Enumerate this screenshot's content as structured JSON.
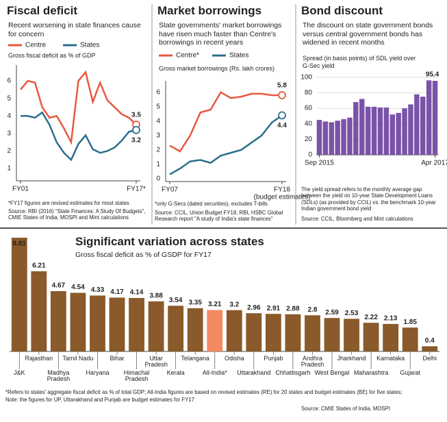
{
  "chart_data": [
    {
      "type": "line",
      "title": "Fiscal deficit",
      "subtitle": "Recent worsening in state finances cause for concern",
      "y_label": "Gross fiscal deficit as % of GDP",
      "categories": [
        "FY01",
        null,
        null,
        null,
        null,
        null,
        null,
        null,
        null,
        null,
        null,
        null,
        null,
        null,
        null,
        null,
        "FY17*"
      ],
      "series": [
        {
          "name": "Centre",
          "color": "#e8583f",
          "values": [
            5.5,
            6.0,
            5.9,
            4.5,
            3.9,
            4.0,
            3.3,
            2.5,
            6.0,
            6.5,
            4.8,
            5.9,
            4.9,
            4.5,
            4.1,
            3.9,
            3.5
          ]
        },
        {
          "name": "States",
          "color": "#2b6e8e",
          "values": [
            4.0,
            4.0,
            3.9,
            4.2,
            3.5,
            2.5,
            1.9,
            1.5,
            2.4,
            2.9,
            2.1,
            1.9,
            2.0,
            2.2,
            2.6,
            3.1,
            3.2
          ]
        }
      ],
      "ylim": [
        0.3,
        6.9
      ],
      "yticks": [
        1,
        2,
        3,
        4,
        5,
        6
      ],
      "grid": false,
      "notes": [
        "*FY17 figures are revised estimates for most states",
        "Source: RBI (2016) \"State Finances: A Study Of Budgets\", CMIE States of India, MOSPI and Mint calculations"
      ]
    },
    {
      "type": "line",
      "title": "Market borrowings",
      "subtitle": "State governments' market borrowings have risen much faster than Centre's borrowings in recent years",
      "y_label": "Gross market borrowings (Rs. lakh crores)",
      "categories": [
        "FY07",
        null,
        null,
        null,
        null,
        null,
        null,
        null,
        null,
        null,
        null,
        "FY18"
      ],
      "x_label_note": "(budget estimates)",
      "series": [
        {
          "name": "Centre*",
          "color": "#e8583f",
          "values": [
            2.3,
            1.9,
            3.0,
            4.6,
            4.8,
            6.0,
            5.6,
            5.7,
            5.9,
            5.9,
            5.8,
            5.8
          ]
        },
        {
          "name": "States",
          "color": "#2b6e8e",
          "values": [
            0.3,
            0.7,
            1.2,
            1.3,
            1.1,
            1.6,
            1.8,
            2.0,
            2.5,
            3.0,
            3.9,
            4.4
          ]
        }
      ],
      "ylim": [
        -0.2,
        6.8
      ],
      "yticks": [
        0,
        1,
        2,
        3,
        4,
        5,
        6
      ],
      "grid": false,
      "notes": [
        "*only G-Secs (dated securities), excludes T-bills",
        "Source: CCIL, Union Budget FY18, RBI, HSBC Global Research report \"A study of India's state finances\""
      ]
    },
    {
      "type": "bar",
      "title": "Bond discount",
      "subtitle": "The discount on state government bonds versus central government bonds has widened in recent months",
      "y_label": "Spread (in basis points) of SDL yield over G-Sec yield",
      "categories": [
        "Sep 2015",
        null,
        null,
        null,
        null,
        null,
        null,
        null,
        null,
        null,
        null,
        null,
        null,
        null,
        null,
        null,
        null,
        null,
        null,
        "Apr 2017"
      ],
      "values": [
        45,
        43,
        42,
        44,
        46,
        48,
        68,
        72,
        62,
        62,
        61,
        61,
        52,
        54,
        60,
        65,
        78,
        75,
        96,
        95.4
      ],
      "color": "#7a53a8",
      "ylim": [
        0,
        106
      ],
      "yticks": [
        0,
        20,
        40,
        60,
        80,
        100
      ],
      "grid": true,
      "notes": [
        "The yield spread refers to the monthly average gap between the yield on 10-year State Development Loans (SDLs) (as provided by CCIL) vs. the benchmark 10-year Indian government bond yield",
        "Source: CCIL, Bloomberg and Mint calculations"
      ]
    },
    {
      "type": "bar",
      "title": "Significant variation across states",
      "subtitle": "Gross fiscal deficit as % of GSDP for FY17",
      "categories": [
        "J&K",
        "Rajasthan",
        "Madhya Pradesh",
        "Tamil Nadu",
        "Haryana",
        "Bihar",
        "Himachal Pradesh",
        "Uttar Pradesh",
        "Kerala",
        "Telangana",
        "All-India*",
        "Odisha",
        "Uttarakhand",
        "Punjab",
        "Chhattisgarh",
        "Andhra Pradesh",
        "West Bengal",
        "Jharkhand",
        "Maharashtra",
        "Karnataka",
        "Gujarat",
        "Delhi"
      ],
      "values": [
        8.81,
        6.21,
        4.67,
        4.54,
        4.33,
        4.17,
        4.14,
        3.88,
        3.54,
        3.35,
        3.21,
        3.2,
        2.96,
        2.91,
        2.88,
        2.8,
        2.59,
        2.53,
        2.22,
        2.13,
        1.85,
        0.4
      ],
      "colors": [
        "#8a5a2b",
        "#8a5a2b",
        "#8a5a2b",
        "#8a5a2b",
        "#8a5a2b",
        "#8a5a2b",
        "#8a5a2b",
        "#8a5a2b",
        "#8a5a2b",
        "#8a5a2b",
        "#f58a62",
        "#8a5a2b",
        "#8a5a2b",
        "#8a5a2b",
        "#8a5a2b",
        "#8a5a2b",
        "#8a5a2b",
        "#8a5a2b",
        "#8a5a2b",
        "#8a5a2b",
        "#8a5a2b",
        "#8a5a2b"
      ],
      "notes": [
        "*Refers to states' aggregate fiscal deficit as % of total GDP; All-India figures are based on revised estimates (RE) for 20 states and budget estimates (BE) for five states;",
        "Note: the figures for UP, Uttarakhand and Punjab are budget estimates for FY17",
        "Source: CMIE States of India, MOSPI"
      ]
    }
  ]
}
